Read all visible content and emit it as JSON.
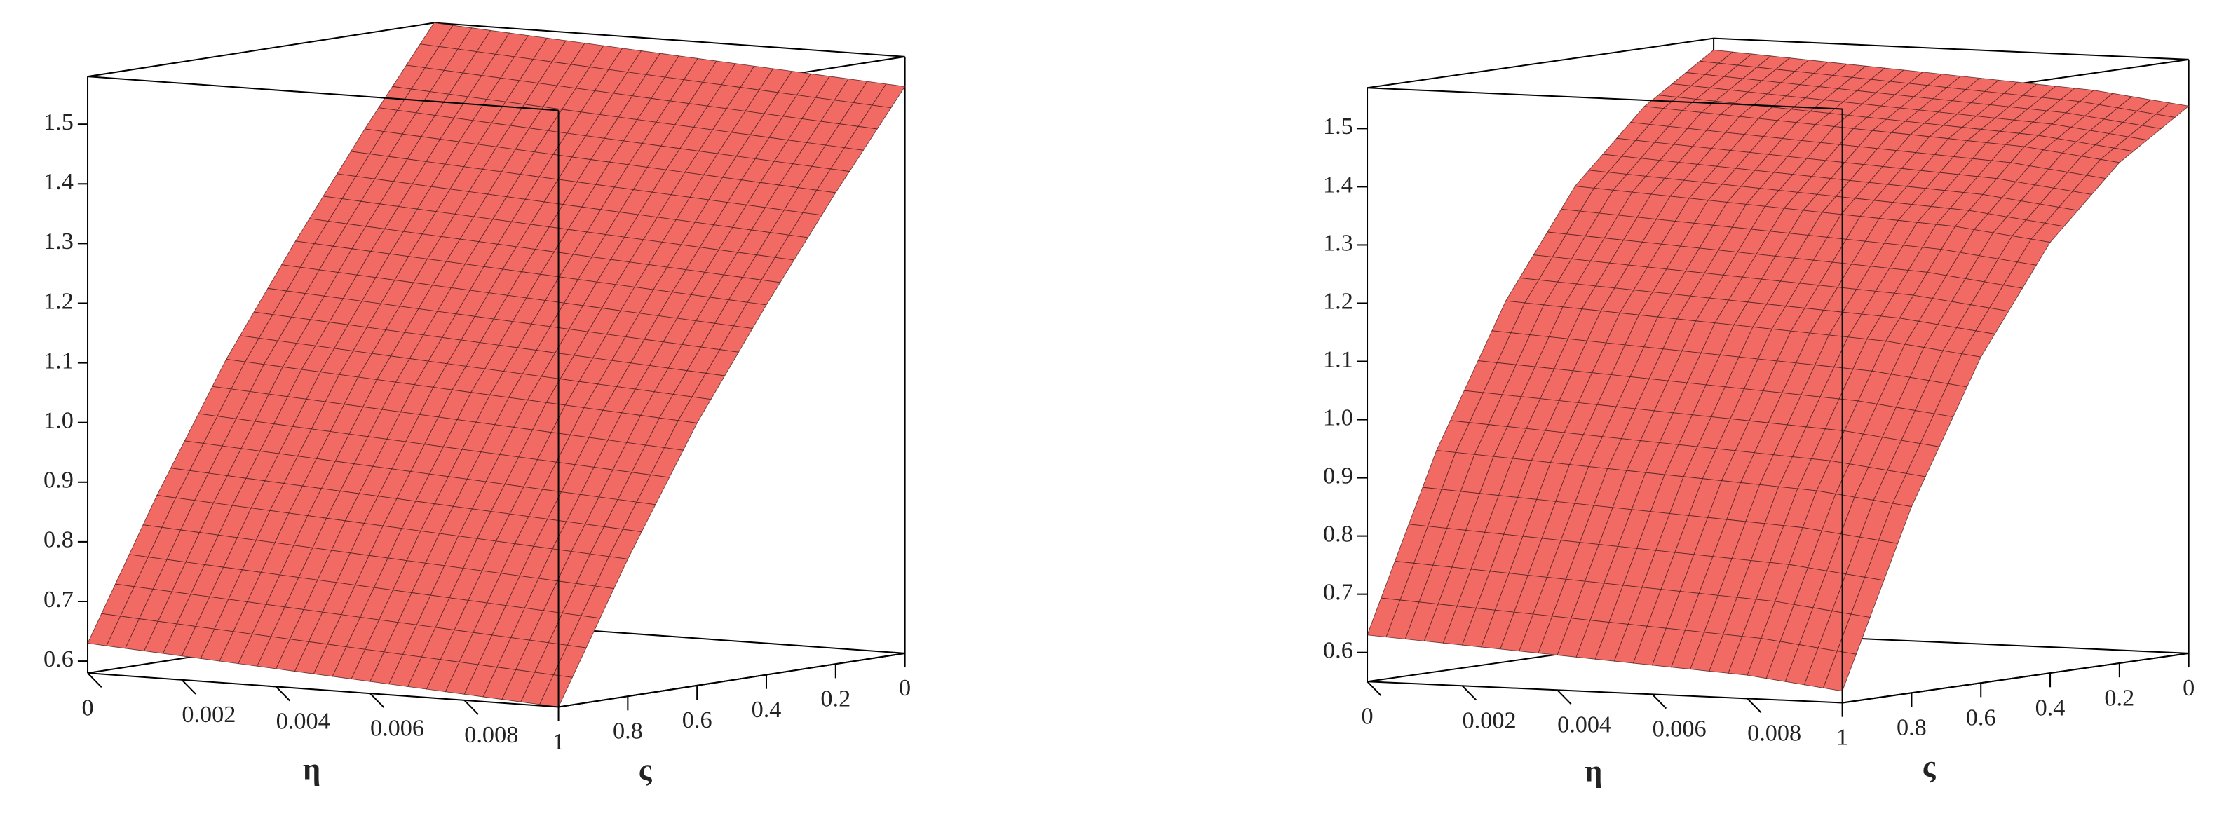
{
  "chart_data": [
    {
      "type": "surface3d",
      "xlabel": "η",
      "ylabel": "ς",
      "color": "#f26a64",
      "xlim": [
        0,
        0.01
      ],
      "ylim": [
        0,
        1
      ],
      "zlim": [
        0.58,
        1.58
      ],
      "xticks": [
        0,
        0.002,
        0.004,
        0.006,
        0.008
      ],
      "yticks": [
        1,
        0.8,
        0.6,
        0.4,
        0.2,
        0
      ],
      "zticks": [
        0.6,
        0.7,
        0.8,
        0.9,
        {
          "value": 1,
          "label": "1.0"
        },
        1.1,
        1.2,
        1.3,
        1.4,
        1.5
      ],
      "x": [
        0,
        0.002,
        0.004,
        0.006,
        0.008,
        0.01
      ],
      "y": [
        1,
        0.8,
        0.6,
        0.4,
        0.2,
        0
      ],
      "z": [
        [
          0.63,
          0.62,
          0.61,
          0.6,
          0.59,
          0.58
        ],
        [
          0.86,
          0.85,
          0.84,
          0.83,
          0.82,
          0.81
        ],
        [
          1.07,
          1.06,
          1.05,
          1.04,
          1.03,
          1.02
        ],
        [
          1.25,
          1.24,
          1.23,
          1.22,
          1.21,
          1.2
        ],
        [
          1.42,
          1.41,
          1.4,
          1.39,
          1.38,
          1.37
        ],
        [
          1.58,
          1.57,
          1.56,
          1.55,
          1.54,
          1.53
        ]
      ]
    },
    {
      "type": "surface3d",
      "xlabel": "η",
      "ylabel": "ς",
      "color": "#f26a64",
      "xlim": [
        0,
        0.01
      ],
      "ylim": [
        0,
        1
      ],
      "zlim": [
        0.55,
        1.57
      ],
      "xticks": [
        0,
        0.002,
        0.004,
        0.006,
        0.008
      ],
      "yticks": [
        1,
        0.8,
        0.6,
        0.4,
        0.2,
        0
      ],
      "zticks": [
        0.6,
        0.7,
        0.8,
        0.9,
        {
          "value": 1,
          "label": "1.0"
        },
        1.1,
        1.2,
        1.3,
        1.4,
        1.5
      ],
      "x": [
        0,
        0.002,
        0.004,
        0.006,
        0.008,
        0.01
      ],
      "y": [
        1,
        0.8,
        0.6,
        0.4,
        0.2,
        0
      ],
      "z": [
        [
          0.63,
          0.62,
          0.61,
          0.6,
          0.59,
          0.57
        ],
        [
          0.93,
          0.92,
          0.91,
          0.9,
          0.89,
          0.87
        ],
        [
          1.17,
          1.16,
          1.15,
          1.14,
          1.13,
          1.11
        ],
        [
          1.35,
          1.34,
          1.33,
          1.32,
          1.31,
          1.29
        ],
        [
          1.47,
          1.46,
          1.45,
          1.44,
          1.43,
          1.41
        ],
        [
          1.55,
          1.54,
          1.53,
          1.52,
          1.51,
          1.49
        ]
      ]
    }
  ]
}
